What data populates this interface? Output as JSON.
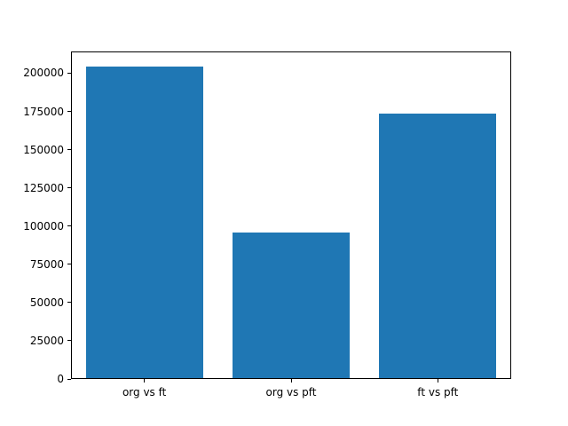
{
  "chart_data": {
    "type": "bar",
    "title": "",
    "xlabel": "",
    "ylabel": "",
    "categories": [
      "org vs ft",
      "org vs pft",
      "ft vs pft"
    ],
    "values": [
      204000,
      95000,
      173000
    ],
    "yticks": [
      0,
      25000,
      50000,
      75000,
      100000,
      125000,
      150000,
      175000,
      200000
    ],
    "ylim": [
      0,
      214200
    ],
    "bar_color": "#1f77b4",
    "bar_width_fraction": 0.8,
    "background_color": "#ffffff",
    "spine_color": "#000000",
    "grid": false,
    "legend": null
  }
}
